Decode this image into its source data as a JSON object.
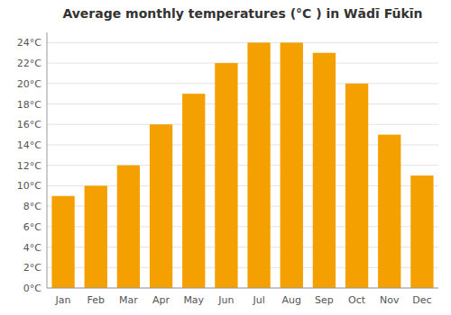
{
  "chart_data": {
    "type": "bar",
    "title": "Average monthly temperatures (°C ) in Wādī Fūkīn",
    "categories": [
      "Jan",
      "Feb",
      "Mar",
      "Apr",
      "May",
      "Jun",
      "Jul",
      "Aug",
      "Sep",
      "Oct",
      "Nov",
      "Dec"
    ],
    "values": [
      9,
      10,
      12,
      16,
      19,
      22,
      24,
      24,
      23,
      20,
      15,
      11
    ],
    "color": "#F4A000",
    "ylim": [
      0,
      25
    ],
    "yticks": [
      {
        "value": 0,
        "label": "0°C"
      },
      {
        "value": 2,
        "label": "2°C"
      },
      {
        "value": 4,
        "label": "4°C"
      },
      {
        "value": 6,
        "label": "6°C"
      },
      {
        "value": 8,
        "label": "8°C"
      },
      {
        "value": 10,
        "label": "10°C"
      },
      {
        "value": 12,
        "label": "12°C"
      },
      {
        "value": 14,
        "label": "14°C"
      },
      {
        "value": 16,
        "label": "16°C"
      },
      {
        "value": 18,
        "label": "18°C"
      },
      {
        "value": 20,
        "label": "20°C"
      },
      {
        "value": 22,
        "label": "22°C"
      },
      {
        "value": 24,
        "label": "24°C"
      }
    ],
    "grid": true
  }
}
